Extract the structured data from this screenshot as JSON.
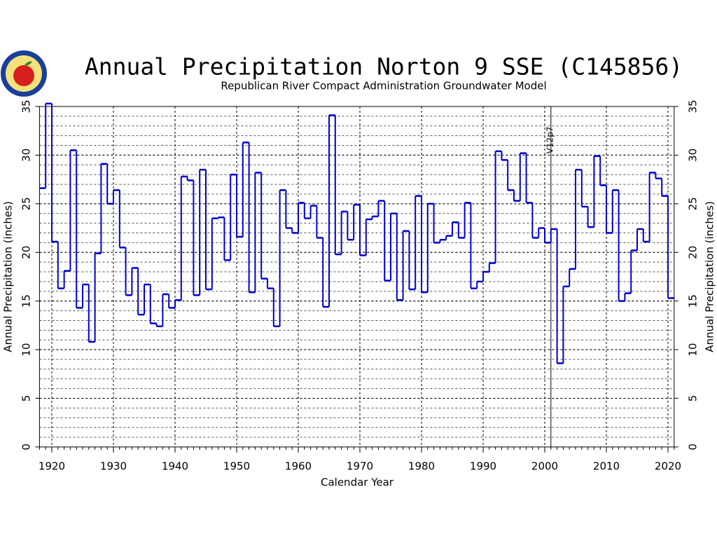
{
  "chart_data": {
    "type": "step",
    "title": "Annual Precipitation Norton 9 SSE (C145856)",
    "subtitle": "Republican River Compact Administration Groundwater Model",
    "x_label": "Calendar Year",
    "y_label": "Annual Precipitation (inches)",
    "annotation": {
      "text": "V12p7",
      "x": 2001
    },
    "color": "#0000cc",
    "grid": true,
    "yminor": 1,
    "xlim": [
      1918,
      2021
    ],
    "xticks": [
      1920,
      1930,
      1940,
      1950,
      1960,
      1970,
      1980,
      1990,
      2000,
      2010,
      2020
    ],
    "ylim": [
      0,
      35
    ],
    "yticks": [
      0,
      5,
      10,
      15,
      20,
      25,
      30,
      35
    ],
    "x": [
      1918,
      1919,
      1920,
      1921,
      1922,
      1923,
      1924,
      1925,
      1926,
      1927,
      1928,
      1929,
      1930,
      1931,
      1932,
      1933,
      1934,
      1935,
      1936,
      1937,
      1938,
      1939,
      1940,
      1941,
      1942,
      1943,
      1944,
      1945,
      1946,
      1947,
      1948,
      1949,
      1950,
      1951,
      1952,
      1953,
      1954,
      1955,
      1956,
      1957,
      1958,
      1959,
      1960,
      1961,
      1962,
      1963,
      1964,
      1965,
      1966,
      1967,
      1968,
      1969,
      1970,
      1971,
      1972,
      1973,
      1974,
      1975,
      1976,
      1977,
      1978,
      1979,
      1980,
      1981,
      1982,
      1983,
      1984,
      1985,
      1986,
      1987,
      1988,
      1989,
      1990,
      1991,
      1992,
      1993,
      1994,
      1995,
      1996,
      1997,
      1998,
      1999,
      2000,
      2001,
      2002,
      2003,
      2004,
      2005,
      2006,
      2007,
      2008,
      2009,
      2010,
      2011,
      2012,
      2013,
      2014,
      2015,
      2016,
      2017,
      2018,
      2019,
      2020
    ],
    "values": [
      26.6,
      35.3,
      21.1,
      16.3,
      18.1,
      30.5,
      14.3,
      16.7,
      10.8,
      19.9,
      29.1,
      25.0,
      26.4,
      20.5,
      15.6,
      18.4,
      13.6,
      16.7,
      12.7,
      12.4,
      15.7,
      14.3,
      15.1,
      27.8,
      27.4,
      15.6,
      28.5,
      16.2,
      23.5,
      23.6,
      19.2,
      28.0,
      21.6,
      31.3,
      15.9,
      28.2,
      17.3,
      16.3,
      12.4,
      26.4,
      22.5,
      22.0,
      25.1,
      23.5,
      24.8,
      21.5,
      14.4,
      34.1,
      19.8,
      24.2,
      21.3,
      24.9,
      19.7,
      23.4,
      23.7,
      25.3,
      17.1,
      24.0,
      15.1,
      22.2,
      16.2,
      25.8,
      15.9,
      25.0,
      21.0,
      21.3,
      21.7,
      23.1,
      21.5,
      25.1,
      16.3,
      17.0,
      18.0,
      18.9,
      30.4,
      29.5,
      26.4,
      25.3,
      30.2,
      25.1,
      21.5,
      22.5,
      21.0,
      22.4,
      8.6,
      16.5,
      18.3,
      28.5,
      24.7,
      22.6,
      29.9,
      26.9,
      22.0,
      26.4,
      15.0,
      15.8,
      20.2,
      22.4,
      21.1,
      28.2,
      27.6,
      25.8,
      15.3
    ]
  }
}
